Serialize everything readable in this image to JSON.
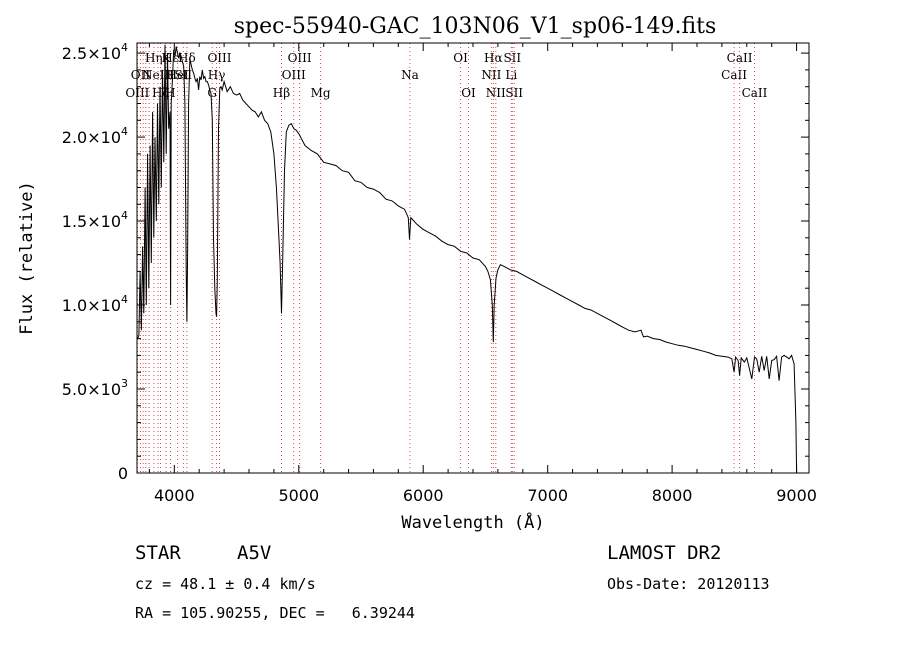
{
  "chart_data": {
    "type": "line",
    "title": "spec-55940-GAC_103N06_V1_sp06-149.fits",
    "xlabel": "Wavelength (Å)",
    "ylabel": "Flux (relative)",
    "xlim": [
      3700,
      9100
    ],
    "ylim": [
      0,
      25600
    ],
    "x_ticks": [
      {
        "value": 4000,
        "label": "4000"
      },
      {
        "value": 5000,
        "label": "5000"
      },
      {
        "value": 6000,
        "label": "6000"
      },
      {
        "value": 7000,
        "label": "7000"
      },
      {
        "value": 8000,
        "label": "8000"
      },
      {
        "value": 9000,
        "label": "9000"
      }
    ],
    "y_ticks": [
      {
        "value": 0,
        "mant": "0",
        "exp": ""
      },
      {
        "value": 5000,
        "mant": "5.0×10",
        "exp": "3"
      },
      {
        "value": 10000,
        "mant": "1.0×10",
        "exp": "4"
      },
      {
        "value": 15000,
        "mant": "1.5×10",
        "exp": "4"
      },
      {
        "value": 20000,
        "mant": "2.0×10",
        "exp": "4"
      },
      {
        "value": 25000,
        "mant": "2.5×10",
        "exp": "4"
      }
    ],
    "series": [
      {
        "x": [
          3705,
          3715,
          3725,
          3735,
          3745,
          3755,
          3765,
          3775,
          3785,
          3795,
          3805,
          3815,
          3825,
          3835,
          3845,
          3855,
          3865,
          3875,
          3885,
          3895,
          3905,
          3915,
          3925,
          3935,
          3945,
          3955,
          3965,
          3970,
          3975,
          3985,
          3995,
          4005,
          4015,
          4025,
          4035,
          4045,
          4055,
          4065,
          4075,
          4085,
          4095,
          4101,
          4107,
          4115,
          4125,
          4135,
          4145,
          4155,
          4165,
          4175,
          4185,
          4195,
          4205,
          4215,
          4225,
          4235,
          4245,
          4255,
          4265,
          4275,
          4285,
          4295,
          4305,
          4315,
          4325,
          4335,
          4340,
          4345,
          4355,
          4365,
          4375,
          4385,
          4400,
          4425,
          4450,
          4475,
          4500,
          4525,
          4550,
          4575,
          4600,
          4625,
          4650,
          4675,
          4700,
          4725,
          4750,
          4775,
          4800,
          4820,
          4840,
          4850,
          4861,
          4872,
          4885,
          4900,
          4920,
          4940,
          4960,
          4980,
          5000,
          5050,
          5100,
          5150,
          5200,
          5250,
          5300,
          5350,
          5400,
          5450,
          5500,
          5550,
          5600,
          5650,
          5700,
          5750,
          5800,
          5850,
          5880,
          5890,
          5900,
          5925,
          5950,
          6000,
          6050,
          6100,
          6150,
          6200,
          6250,
          6300,
          6350,
          6400,
          6450,
          6500,
          6520,
          6540,
          6555,
          6563,
          6570,
          6585,
          6600,
          6620,
          6650,
          6700,
          6750,
          6800,
          6850,
          6900,
          6950,
          7000,
          7050,
          7100,
          7150,
          7200,
          7250,
          7300,
          7350,
          7400,
          7450,
          7500,
          7550,
          7600,
          7650,
          7700,
          7750,
          7760,
          7770,
          7800,
          7850,
          7900,
          7950,
          8000,
          8050,
          8100,
          8150,
          8200,
          8250,
          8300,
          8350,
          8400,
          8450,
          8480,
          8498,
          8510,
          8530,
          8542,
          8555,
          8580,
          8600,
          8640,
          8662,
          8680,
          8700,
          8720,
          8740,
          8760,
          8780,
          8800,
          8820,
          8840,
          8860,
          8880,
          8900,
          8920,
          8940,
          8960,
          8980,
          8995,
          9000
        ],
        "y": [
          8000,
          8200,
          12000,
          8500,
          13500,
          9500,
          17000,
          10000,
          19000,
          11000,
          19500,
          12500,
          21500,
          14000,
          20000,
          15000,
          22000,
          16000,
          23000,
          17000,
          24000,
          18500,
          25500,
          19000,
          25000,
          20500,
          21500,
          10000,
          22000,
          23500,
          25200,
          24800,
          25400,
          25000,
          24700,
          25000,
          24800,
          24500,
          24200,
          22000,
          12000,
          9000,
          13000,
          22000,
          24700,
          24300,
          24000,
          23800,
          23500,
          23300,
          23500,
          22800,
          23600,
          23400,
          24000,
          23500,
          23600,
          23300,
          23300,
          23100,
          22800,
          22600,
          21000,
          14000,
          11000,
          9500,
          9300,
          11500,
          20500,
          22900,
          23000,
          22800,
          23300,
          22700,
          23000,
          22600,
          22500,
          22600,
          22200,
          22000,
          21800,
          21600,
          21500,
          21200,
          21500,
          21000,
          20800,
          20300,
          19000,
          17000,
          14000,
          12500,
          9500,
          13000,
          18000,
          20300,
          20700,
          20800,
          20500,
          20400,
          20200,
          19500,
          19200,
          19000,
          18500,
          18400,
          18300,
          18000,
          17900,
          17400,
          17300,
          17000,
          16900,
          16700,
          16300,
          16200,
          15900,
          15700,
          15200,
          13900,
          15200,
          15000,
          14800,
          14500,
          14300,
          14100,
          13800,
          13600,
          13500,
          13200,
          13100,
          12800,
          12700,
          12300,
          12000,
          11500,
          10000,
          7800,
          10000,
          11600,
          12100,
          12400,
          12300,
          12100,
          12000,
          11800,
          11600,
          11400,
          11200,
          11000,
          10800,
          10600,
          10400,
          10200,
          10000,
          9800,
          9700,
          9500,
          9300,
          9100,
          8900,
          8700,
          8500,
          8400,
          8500,
          8300,
          8100,
          8150,
          8000,
          7950,
          7800,
          7700,
          7600,
          7550,
          7450,
          7350,
          7250,
          7150,
          7000,
          6950,
          6900,
          6800,
          6000,
          6900,
          6700,
          5800,
          6850,
          6600,
          6850,
          5600,
          6900,
          6800,
          6000,
          6950,
          6100,
          6950,
          5600,
          6700,
          6750,
          6950,
          5500,
          6900,
          7000,
          6900,
          6800,
          7000,
          6500,
          3000,
          0
        ]
      }
    ],
    "lines": [
      {
        "wl": 3703,
        "label": "OIII",
        "row": 2
      },
      {
        "wl": 3727,
        "label": "OII",
        "row": 1
      },
      {
        "wl": 3750,
        "label": "",
        "row": 0
      },
      {
        "wl": 3771,
        "label": "",
        "row": 0
      },
      {
        "wl": 3798,
        "label": "",
        "row": 0
      },
      {
        "wl": 3835,
        "label": "Hη",
        "row": 0
      },
      {
        "wl": 3869,
        "label": "NeIII",
        "row": 1
      },
      {
        "wl": 3889,
        "label": "Hζ",
        "row": 2
      },
      {
        "wl": 3933,
        "label": "K",
        "row": 0
      },
      {
        "wl": 3968,
        "label": "H",
        "row": 2
      },
      {
        "wl": 3970,
        "label": "Hε",
        "row": 0
      },
      {
        "wl": 4026,
        "label": "HeI",
        "row": 1
      },
      {
        "wl": 4072,
        "label": "SII",
        "row": 1
      },
      {
        "wl": 4101,
        "label": "Hδ",
        "row": 0
      },
      {
        "wl": 4304,
        "label": "G",
        "row": 2
      },
      {
        "wl": 4340,
        "label": "Hγ",
        "row": 1
      },
      {
        "wl": 4363,
        "label": "OIII",
        "row": 0
      },
      {
        "wl": 4861,
        "label": "Hβ",
        "row": 2
      },
      {
        "wl": 4959,
        "label": "OIII",
        "row": 1
      },
      {
        "wl": 5007,
        "label": "OIII",
        "row": 0
      },
      {
        "wl": 5175,
        "label": "Mg",
        "row": 2
      },
      {
        "wl": 5893,
        "label": "Na",
        "row": 1
      },
      {
        "wl": 6300,
        "label": "OI",
        "row": 0
      },
      {
        "wl": 6364,
        "label": "OI",
        "row": 2
      },
      {
        "wl": 6548,
        "label": "NII",
        "row": 1
      },
      {
        "wl": 6563,
        "label": "Hα",
        "row": 0
      },
      {
        "wl": 6583,
        "label": "NII",
        "row": 2
      },
      {
        "wl": 6708,
        "label": "Li",
        "row": 1
      },
      {
        "wl": 6716,
        "label": "SII",
        "row": 0
      },
      {
        "wl": 6731,
        "label": "SII",
        "row": 2
      },
      {
        "wl": 8498,
        "label": "CaII",
        "row": 1
      },
      {
        "wl": 8542,
        "label": "CaII",
        "row": 0
      },
      {
        "wl": 8662,
        "label": "CaII",
        "row": 2
      }
    ]
  },
  "info": {
    "object_class": "STAR",
    "subclass": "A5V",
    "survey": "LAMOST DR2",
    "cz": "cz = 48.1 ± 0.4 km/s",
    "obs_date": "Obs-Date: 20120113",
    "radec": "RA = 105.90255, DEC =   6.39244"
  }
}
